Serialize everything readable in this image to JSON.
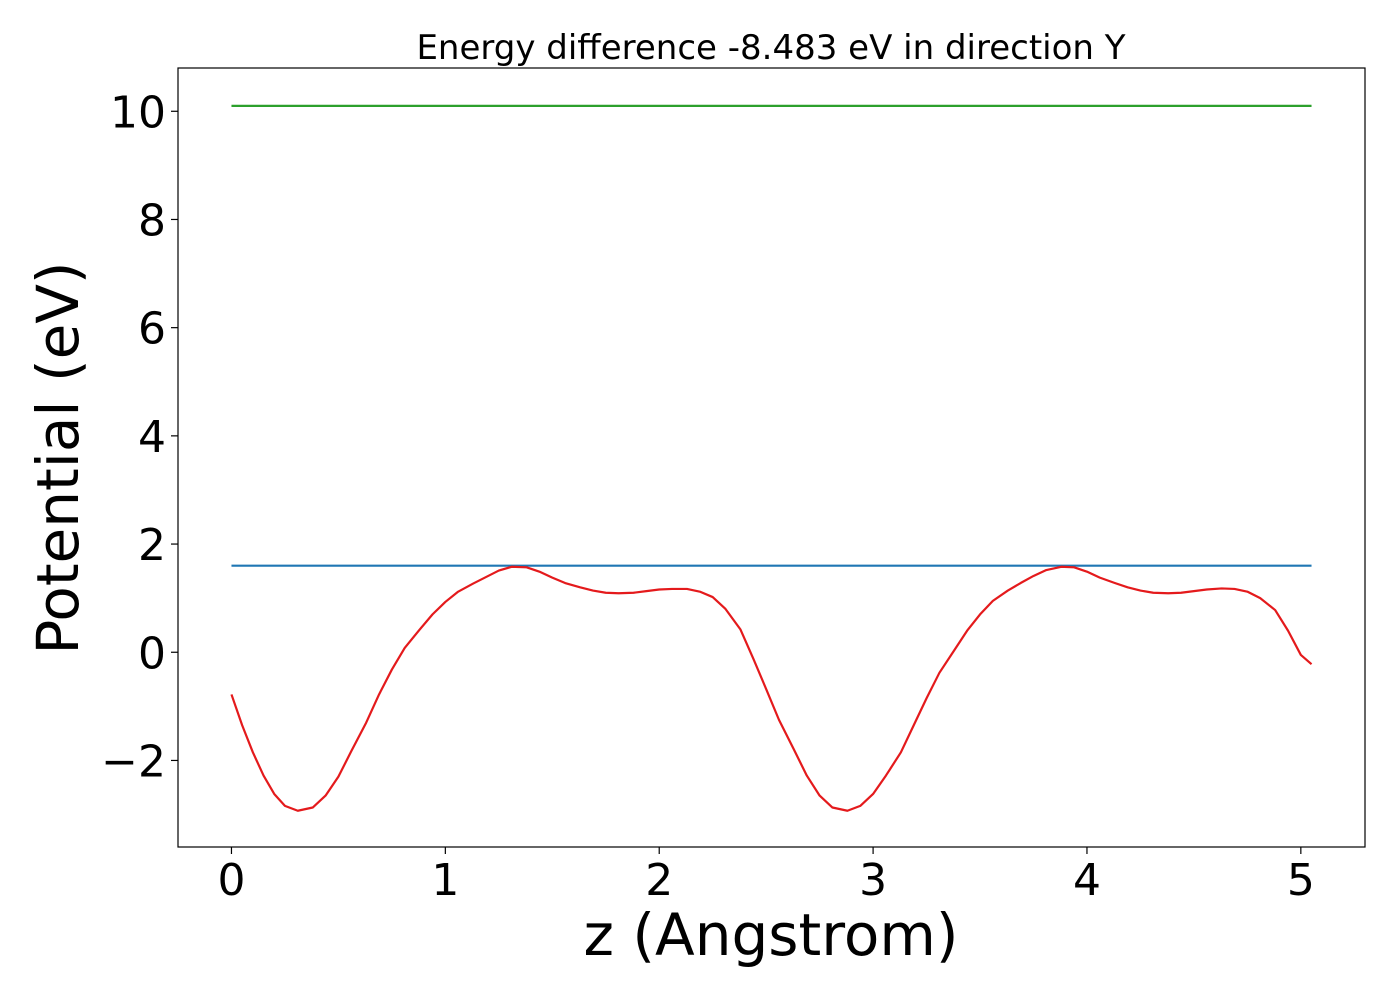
{
  "chart_data": {
    "type": "line",
    "title": "Energy difference -8.483 eV in direction Y",
    "xlabel": "z (Angstrom)",
    "ylabel": "Potential (eV)",
    "xlim": [
      -0.25,
      5.3
    ],
    "ylim": [
      -3.6,
      10.8
    ],
    "xticks": [
      0,
      1,
      2,
      3,
      4,
      5
    ],
    "xtick_labels": [
      "0",
      "1",
      "2",
      "3",
      "4",
      "5"
    ],
    "yticks": [
      -2,
      0,
      2,
      4,
      6,
      8,
      10
    ],
    "ytick_labels": [
      "−2",
      "0",
      "2",
      "4",
      "6",
      "8",
      "10"
    ],
    "grid": false,
    "series": [
      {
        "color": "#2ca02c",
        "x": [
          0,
          5.05
        ],
        "y": [
          10.1,
          10.1
        ]
      },
      {
        "color": "#1f77b4",
        "x": [
          0,
          5.05
        ],
        "y": [
          1.6,
          1.6
        ]
      },
      {
        "color": "#e41a1c",
        "x": [
          0.0,
          0.05,
          0.1,
          0.15,
          0.2,
          0.25,
          0.31,
          0.38,
          0.44,
          0.5,
          0.56,
          0.63,
          0.69,
          0.75,
          0.81,
          0.88,
          0.94,
          1.0,
          1.06,
          1.13,
          1.19,
          1.25,
          1.31,
          1.38,
          1.44,
          1.5,
          1.56,
          1.63,
          1.69,
          1.75,
          1.81,
          1.88,
          1.94,
          2.0,
          2.06,
          2.13,
          2.19,
          2.25,
          2.31,
          2.38,
          2.44,
          2.5,
          2.56,
          2.63,
          2.69,
          2.75,
          2.81,
          2.88,
          2.94,
          3.0,
          3.06,
          3.13,
          3.19,
          3.25,
          3.31,
          3.38,
          3.44,
          3.5,
          3.56,
          3.63,
          3.69,
          3.75,
          3.81,
          3.88,
          3.94,
          4.0,
          4.06,
          4.13,
          4.19,
          4.25,
          4.31,
          4.38,
          4.44,
          4.5,
          4.56,
          4.63,
          4.69,
          4.75,
          4.81,
          4.88,
          4.94,
          5.0,
          5.05
        ],
        "y": [
          -0.78,
          -1.35,
          -1.85,
          -2.28,
          -2.62,
          -2.84,
          -2.93,
          -2.87,
          -2.65,
          -2.3,
          -1.83,
          -1.3,
          -0.78,
          -0.32,
          0.08,
          0.42,
          0.7,
          0.93,
          1.12,
          1.27,
          1.39,
          1.51,
          1.58,
          1.57,
          1.49,
          1.38,
          1.28,
          1.2,
          1.14,
          1.1,
          1.09,
          1.1,
          1.13,
          1.16,
          1.17,
          1.17,
          1.12,
          1.02,
          0.8,
          0.42,
          -0.12,
          -0.68,
          -1.25,
          -1.8,
          -2.28,
          -2.65,
          -2.87,
          -2.93,
          -2.84,
          -2.62,
          -2.28,
          -1.85,
          -1.35,
          -0.85,
          -0.38,
          0.04,
          0.4,
          0.7,
          0.95,
          1.14,
          1.28,
          1.41,
          1.52,
          1.58,
          1.57,
          1.49,
          1.38,
          1.28,
          1.2,
          1.14,
          1.1,
          1.09,
          1.1,
          1.13,
          1.16,
          1.18,
          1.17,
          1.12,
          1.0,
          0.78,
          0.4,
          -0.05,
          -0.22
        ]
      }
    ]
  }
}
